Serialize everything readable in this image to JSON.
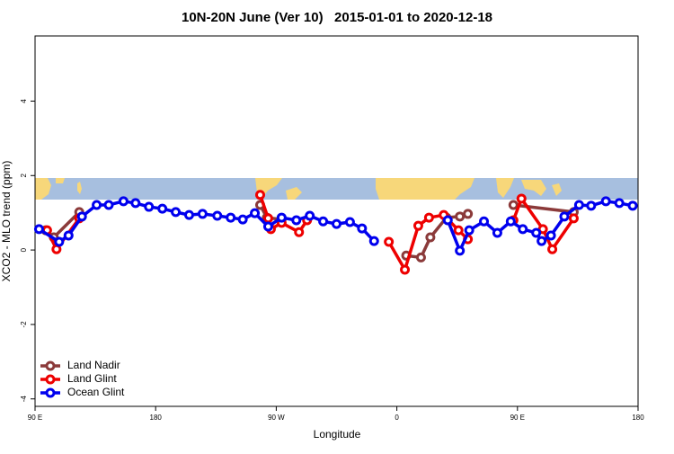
{
  "chart_data": {
    "type": "line",
    "title": "10N-20N June (Ver 10)   2015-01-01 to 2020-12-18",
    "x_label": "Longitude",
    "y_label": "XCO2 - MLO trend (ppm)",
    "xlim": [
      90,
      540
    ],
    "xticks": [
      {
        "value": 90,
        "label": "90 E"
      },
      180,
      {
        "value": 270,
        "label": "90 W"
      },
      {
        "value": 360,
        "label": "0"
      },
      {
        "value": 450,
        "label": "90 E"
      },
      {
        "value": 540,
        "label": "180"
      }
    ],
    "ylim": [
      -4.2,
      5.75
    ],
    "yticks": [
      -4,
      -2,
      0,
      2,
      4
    ],
    "legend": "bottom-left",
    "series": [
      {
        "name": "Land Nadir",
        "color": "#8b3a3a",
        "x": [
          98,
          104,
          123,
          200,
          258,
          263,
          274,
          360,
          367,
          378,
          385,
          397,
          407,
          413,
          430,
          447,
          492
        ],
        "values": [
          0.53,
          0.34,
          1.02,
          null,
          1.21,
          0.87,
          0.82,
          null,
          -0.15,
          -0.2,
          0.34,
          0.87,
          0.9,
          0.97,
          null,
          1.21,
          1.02
        ]
      },
      {
        "name": "Land Glint",
        "color": "#ee0000",
        "x": [
          99,
          106,
          123,
          200,
          258,
          264,
          266,
          274,
          287,
          293,
          330,
          354,
          366,
          376,
          384,
          395,
          406,
          413,
          430,
          447,
          453,
          469,
          476,
          492
        ],
        "values": [
          0.53,
          0.02,
          0.85,
          null,
          1.48,
          0.85,
          0.56,
          0.73,
          0.48,
          0.8,
          null,
          0.22,
          -0.53,
          0.65,
          0.87,
          0.94,
          0.53,
          0.29,
          null,
          0.8,
          1.38,
          0.56,
          0.02,
          0.85
        ]
      },
      {
        "name": "Ocean Glint",
        "color": "#0000ee",
        "x": [
          93,
          108,
          115,
          125,
          136,
          145,
          156,
          165,
          175,
          185,
          195,
          205,
          215,
          226,
          236,
          245,
          254,
          264,
          274,
          285,
          295,
          305,
          315,
          325,
          334,
          343,
          360,
          398,
          407,
          414,
          425,
          435,
          445,
          454,
          464,
          468,
          475,
          485,
          496,
          505,
          516,
          526,
          536
        ],
        "values": [
          0.56,
          0.22,
          0.39,
          0.9,
          1.21,
          1.21,
          1.31,
          1.26,
          1.16,
          1.11,
          1.02,
          0.94,
          0.97,
          0.92,
          0.87,
          0.82,
          0.99,
          0.63,
          0.87,
          0.8,
          0.92,
          0.77,
          0.7,
          0.75,
          0.58,
          0.24,
          null,
          0.8,
          -0.02,
          0.53,
          0.77,
          0.46,
          0.77,
          0.56,
          0.46,
          0.24,
          0.39,
          0.9,
          1.21,
          1.19,
          1.31,
          1.26,
          1.19
        ]
      }
    ]
  }
}
